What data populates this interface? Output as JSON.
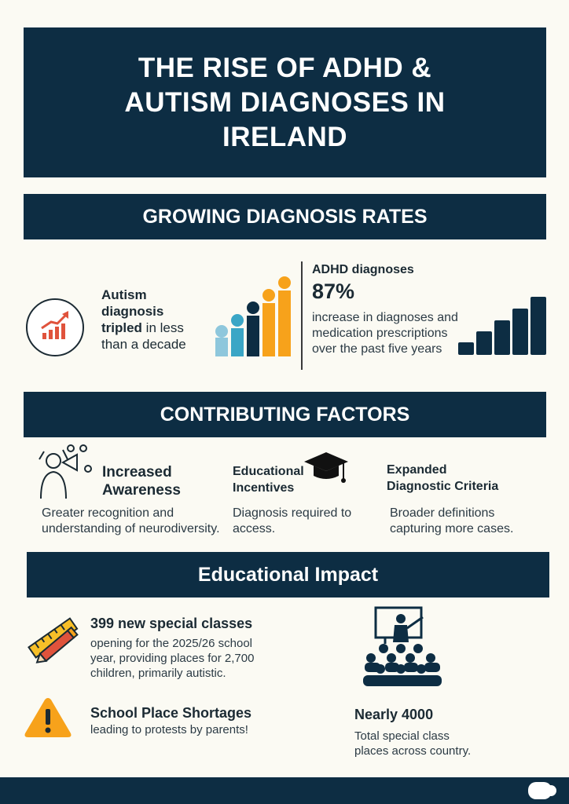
{
  "title": "THE RISE OF ADHD & AUTISM DIAGNOSES IN IRELAND",
  "sections": {
    "growing": "GROWING DIAGNOSIS RATES",
    "factors": "CONTRIBUTING FACTORS",
    "impact": "Educational Impact"
  },
  "autism": {
    "bold_line1": "Autism",
    "bold_line2": "diagnosis",
    "bold_word": "tripled",
    "rest_line3": " in less",
    "line4": "than a decade",
    "icon": "chart-growth-icon"
  },
  "adhd": {
    "label": "ADHD diagnoses",
    "value": "87%",
    "desc_line1": "increase in diagnoses and",
    "desc_line2": "medication prescriptions",
    "desc_line3": "over the past five years"
  },
  "factors": [
    {
      "title1": "Increased",
      "title2": "Awareness",
      "desc1": "Greater recognition and",
      "desc2": "understanding of neurodiversity.",
      "icon": "awareness-megaphone-icon"
    },
    {
      "title1": "Educational",
      "title2": "Incentives",
      "desc1": "Diagnosis required to",
      "desc2": "access.",
      "icon": "graduation-cap-icon"
    },
    {
      "title1": "Expanded",
      "title2": "Diagnostic Criteria",
      "desc1": "Broader definitions",
      "desc2": "capturing more cases."
    }
  ],
  "impact": {
    "classes_title": "399 new special classes",
    "classes_desc1": "opening for the 2025/26 school",
    "classes_desc2": "year, providing places for 2,700",
    "classes_desc3": "children, primarily autistic.",
    "shortage_title": "School Place Shortages",
    "shortage_desc": "leading to protests by parents!",
    "places_title": "Nearly 4000",
    "places_desc1": "Total special class",
    "places_desc2": "places across country."
  },
  "colors": {
    "navy": "#0d2d43",
    "background": "#fbfaf3",
    "teal": "#3aa6c6",
    "lightblue": "#8ec7dc",
    "orange": "#f7a21b",
    "yellow": "#f7bf28",
    "red": "#e0533c"
  },
  "icons": [
    "pencil-ruler-icon",
    "warning-icon",
    "teacher-classroom-icon",
    "bar-chart-icon",
    "logo-icon"
  ]
}
